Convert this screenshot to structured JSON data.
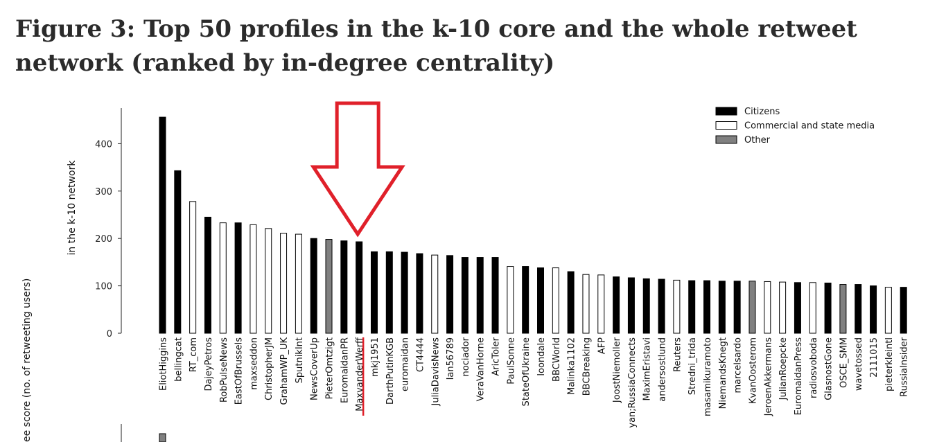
{
  "page": {
    "title": "Figure 3: Top 50 profiles in the k-10 core and the whole retweet network (ranked by in-degree centrality)"
  },
  "chart_data": {
    "type": "bar",
    "ylabel": "in the k-10 network",
    "outer_ylabel": "ee score (no. of retweeting users)",
    "ylim": [
      0,
      460
    ],
    "yticks": [
      0,
      100,
      200,
      300,
      400
    ],
    "legend": {
      "placement": "top-right",
      "entries": [
        {
          "name": "Citizens",
          "color": "#000000"
        },
        {
          "name": "Commercial and state media",
          "color": "#ffffff"
        },
        {
          "name": "Other",
          "color": "#808080"
        }
      ]
    },
    "categories": [
      "EliotHiggins",
      "bellingcat",
      "RT_com",
      "DajeyPetros",
      "RobPulseNews",
      "EastOfBrussels",
      "maxseddon",
      "ChristopherJM",
      "GrahamWP_UK",
      "SputnikInt",
      "NewsCoverUp",
      "PieterOmtzigt",
      "EuromaidanPR",
      "MaxvanderWerff",
      "mkj1951",
      "DarthPutinKGB",
      "euromaidan",
      "CT4444",
      "JuliaDavisNews",
      "Ian56789",
      "nociador",
      "VeraVanHorne",
      "AricToler",
      "PaulSonne",
      "StateOfUkraine",
      "loondale",
      "BBCWorld",
      "Malinka1102",
      "BBCBreaking",
      "AFP",
      "JoostNiemoller",
      "yan;RussiaConnects",
      "MaximEristavi",
      "andersostlund",
      "Reuters",
      "Stredni_trida",
      "masamikuramoto",
      "NiemandsKnegt",
      "marcelsardo",
      "KvanOosterom",
      "JeroenAkkermans",
      "JulianRoepcke",
      "EuromaidanPress",
      "radiosvoboda",
      "GlasnostGone",
      "OSCE_SMM",
      "wavetossed",
      "2111015",
      "pieterkleintl",
      "RussiaInsider"
    ],
    "values": [
      456,
      343,
      278,
      245,
      233,
      233,
      229,
      221,
      211,
      209,
      200,
      198,
      195,
      193,
      172,
      172,
      171,
      168,
      165,
      164,
      160,
      160,
      160,
      141,
      141,
      138,
      138,
      130,
      124,
      123,
      119,
      117,
      115,
      114,
      112,
      111,
      111,
      110,
      110,
      110,
      109,
      108,
      107,
      107,
      106,
      103,
      103,
      100,
      97,
      97
    ],
    "groups": [
      "Citizens",
      "Citizens",
      "Commercial and state media",
      "Citizens",
      "Commercial and state media",
      "Citizens",
      "Commercial and state media",
      "Commercial and state media",
      "Commercial and state media",
      "Commercial and state media",
      "Citizens",
      "Other",
      "Citizens",
      "Citizens",
      "Citizens",
      "Citizens",
      "Citizens",
      "Citizens",
      "Commercial and state media",
      "Citizens",
      "Citizens",
      "Citizens",
      "Citizens",
      "Commercial and state media",
      "Citizens",
      "Citizens",
      "Commercial and state media",
      "Citizens",
      "Commercial and state media",
      "Commercial and state media",
      "Citizens",
      "Citizens",
      "Citizens",
      "Citizens",
      "Commercial and state media",
      "Citizens",
      "Citizens",
      "Citizens",
      "Citizens",
      "Other",
      "Commercial and state media",
      "Commercial and state media",
      "Citizens",
      "Commercial and state media",
      "Citizens",
      "Other",
      "Citizens",
      "Citizens",
      "Commercial and state media",
      "Citizens"
    ],
    "highlight": {
      "category": "MaxvanderWerff",
      "marker": "red-down-arrow",
      "underline_color": "#e0202a"
    },
    "lower_panel_first_bar_color": "#808080"
  }
}
